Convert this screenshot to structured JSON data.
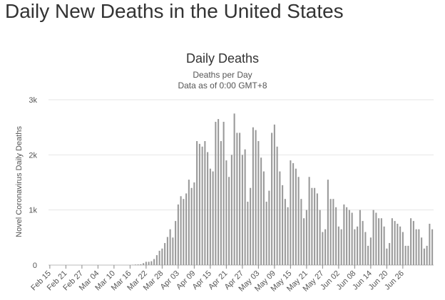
{
  "page": {
    "heading": "Daily New Deaths in the United States"
  },
  "chart_data": {
    "type": "bar",
    "title": "Daily Deaths",
    "subtitle": [
      "Deaths per Day",
      "Data as of 0:00 GMT+8"
    ],
    "xlabel": "",
    "ylabel": "Novel Coronavirus Daily Deaths",
    "ylim": [
      0,
      3000
    ],
    "y_ticks": [
      0,
      1000,
      2000,
      3000
    ],
    "y_tick_labels": [
      "0",
      "1k",
      "2k",
      "3k"
    ],
    "grid": true,
    "bar_color": "#999999",
    "x_tick_labels": [
      "Feb 15",
      "Feb 21",
      "Feb 27",
      "Mar 04",
      "Mar 10",
      "Mar 16",
      "Mar 22",
      "Mar 28",
      "Apr 03",
      "Apr 09",
      "Apr 15",
      "Apr 21",
      "Apr 27",
      "May 03",
      "May 09",
      "May 15",
      "May 21",
      "May 27",
      "Jun 02",
      "Jun 08",
      "Jun 14",
      "Jun 20",
      "Jun 26"
    ],
    "x_tick_every": 6,
    "values": [
      0,
      0,
      0,
      0,
      0,
      0,
      0,
      0,
      0,
      0,
      0,
      0,
      0,
      0,
      0,
      0,
      0,
      0,
      0,
      0,
      0,
      0,
      0,
      0,
      0,
      0,
      0,
      0,
      0,
      0,
      0,
      5,
      10,
      12,
      15,
      35,
      60,
      60,
      70,
      110,
      180,
      260,
      300,
      400,
      510,
      650,
      500,
      800,
      1100,
      1250,
      1200,
      1300,
      1550,
      1400,
      1500,
      2250,
      2200,
      2150,
      2250,
      2050,
      1750,
      1700,
      2600,
      2650,
      2250,
      2600,
      1900,
      1600,
      2000,
      2750,
      2400,
      2400,
      2000,
      2100,
      1150,
      1400,
      2500,
      2450,
      2250,
      1950,
      1700,
      1150,
      1350,
      2400,
      2550,
      2150,
      1700,
      1450,
      1200,
      1050,
      1900,
      1850,
      1750,
      1600,
      1200,
      850,
      1000,
      1600,
      1400,
      1400,
      1300,
      1000,
      600,
      650,
      1550,
      1200,
      1200,
      1050,
      700,
      650,
      1100,
      1050,
      1000,
      950,
      650,
      700,
      1000,
      800,
      600,
      350,
      500,
      1000,
      950,
      850,
      850,
      700,
      300,
      400,
      850,
      800,
      750,
      700,
      600,
      350,
      350,
      850,
      800,
      650,
      650,
      500,
      300,
      350,
      750,
      650
    ]
  }
}
